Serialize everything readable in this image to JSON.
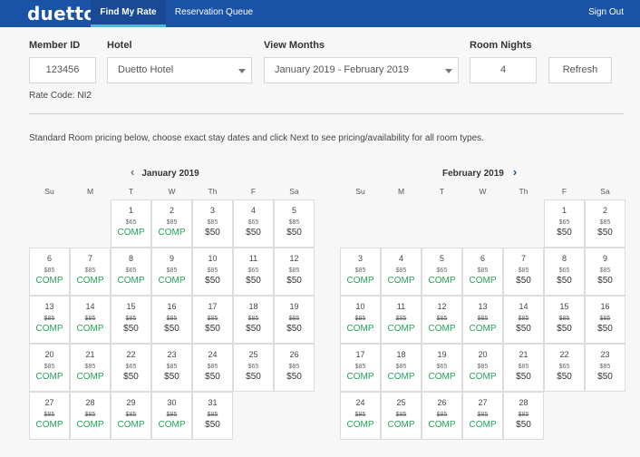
{
  "app": {
    "logo": "duetto",
    "tabs": [
      {
        "label": "Find My Rate",
        "active": true
      },
      {
        "label": "Reservation Queue",
        "active": false
      }
    ],
    "sign_out": "Sign Out"
  },
  "form": {
    "member_id_label": "Member ID",
    "member_id_value": "123456",
    "hotel_label": "Hotel",
    "hotel_value": "Duetto Hotel",
    "view_months_label": "View Months",
    "view_months_value": "January 2019 - February 2019",
    "room_nights_label": "Room Nights",
    "room_nights_value": "4",
    "refresh_label": "Refresh",
    "rate_code": "Rate Code: NI2"
  },
  "instructions": "Standard Room pricing below, choose exact stay dates and click Next to see pricing/availability for all room types.",
  "weekdays": [
    "Su",
    "M",
    "T",
    "W",
    "Th",
    "F",
    "Sa"
  ],
  "calendar": [
    {
      "title": "January 2019",
      "nav": "prev",
      "start_weekday": 2,
      "days": [
        {
          "day": "1",
          "price": "$65",
          "rate": "COMP",
          "strike": false
        },
        {
          "day": "2",
          "price": "$85",
          "rate": "COMP",
          "strike": false
        },
        {
          "day": "3",
          "price": "$85",
          "rate": "$50",
          "strike": false
        },
        {
          "day": "4",
          "price": "$65",
          "rate": "$50",
          "strike": false
        },
        {
          "day": "5",
          "price": "$85",
          "rate": "$50",
          "strike": false
        },
        {
          "day": "6",
          "price": "$85",
          "rate": "COMP",
          "strike": false
        },
        {
          "day": "7",
          "price": "$85",
          "rate": "COMP",
          "strike": false
        },
        {
          "day": "8",
          "price": "$65",
          "rate": "COMP",
          "strike": false
        },
        {
          "day": "9",
          "price": "$85",
          "rate": "COMP",
          "strike": false
        },
        {
          "day": "10",
          "price": "$85",
          "rate": "$50",
          "strike": false
        },
        {
          "day": "11",
          "price": "$65",
          "rate": "$50",
          "strike": false
        },
        {
          "day": "12",
          "price": "$85",
          "rate": "$50",
          "strike": false
        },
        {
          "day": "13",
          "price": "$85",
          "rate": "COMP",
          "strike": true
        },
        {
          "day": "14",
          "price": "$85",
          "rate": "COMP",
          "strike": true
        },
        {
          "day": "15",
          "price": "$85",
          "rate": "$50",
          "strike": true
        },
        {
          "day": "16",
          "price": "$85",
          "rate": "$50",
          "strike": true
        },
        {
          "day": "17",
          "price": "$85",
          "rate": "$50",
          "strike": true
        },
        {
          "day": "18",
          "price": "$85",
          "rate": "$50",
          "strike": true
        },
        {
          "day": "19",
          "price": "$85",
          "rate": "$50",
          "strike": true
        },
        {
          "day": "20",
          "price": "$85",
          "rate": "COMP",
          "strike": false
        },
        {
          "day": "21",
          "price": "$85",
          "rate": "COMP",
          "strike": false
        },
        {
          "day": "22",
          "price": "$65",
          "rate": "$50",
          "strike": false
        },
        {
          "day": "23",
          "price": "$85",
          "rate": "$50",
          "strike": false
        },
        {
          "day": "24",
          "price": "$85",
          "rate": "$50",
          "strike": false
        },
        {
          "day": "25",
          "price": "$65",
          "rate": "$50",
          "strike": false
        },
        {
          "day": "26",
          "price": "$85",
          "rate": "$50",
          "strike": false
        },
        {
          "day": "27",
          "price": "$85",
          "rate": "COMP",
          "strike": true
        },
        {
          "day": "28",
          "price": "$85",
          "rate": "COMP",
          "strike": true
        },
        {
          "day": "29",
          "price": "$85",
          "rate": "COMP",
          "strike": true
        },
        {
          "day": "30",
          "price": "$85",
          "rate": "COMP",
          "strike": true
        },
        {
          "day": "31",
          "price": "$85",
          "rate": "$50",
          "strike": true
        }
      ]
    },
    {
      "title": "February 2019",
      "nav": "next",
      "start_weekday": 5,
      "days": [
        {
          "day": "1",
          "price": "$65",
          "rate": "$50",
          "strike": false
        },
        {
          "day": "2",
          "price": "$85",
          "rate": "$50",
          "strike": false
        },
        {
          "day": "3",
          "price": "$85",
          "rate": "COMP",
          "strike": false
        },
        {
          "day": "4",
          "price": "$85",
          "rate": "COMP",
          "strike": false
        },
        {
          "day": "5",
          "price": "$65",
          "rate": "COMP",
          "strike": false
        },
        {
          "day": "6",
          "price": "$85",
          "rate": "COMP",
          "strike": false
        },
        {
          "day": "7",
          "price": "$85",
          "rate": "$50",
          "strike": false
        },
        {
          "day": "8",
          "price": "$65",
          "rate": "$50",
          "strike": false
        },
        {
          "day": "9",
          "price": "$85",
          "rate": "$50",
          "strike": false
        },
        {
          "day": "10",
          "price": "$85",
          "rate": "COMP",
          "strike": true
        },
        {
          "day": "11",
          "price": "$85",
          "rate": "COMP",
          "strike": true
        },
        {
          "day": "12",
          "price": "$85",
          "rate": "COMP",
          "strike": true
        },
        {
          "day": "13",
          "price": "$85",
          "rate": "COMP",
          "strike": true
        },
        {
          "day": "14",
          "price": "$85",
          "rate": "$50",
          "strike": true
        },
        {
          "day": "15",
          "price": "$85",
          "rate": "$50",
          "strike": true
        },
        {
          "day": "16",
          "price": "$85",
          "rate": "$50",
          "strike": true
        },
        {
          "day": "17",
          "price": "$85",
          "rate": "COMP",
          "strike": false
        },
        {
          "day": "18",
          "price": "$85",
          "rate": "COMP",
          "strike": false
        },
        {
          "day": "19",
          "price": "$65",
          "rate": "COMP",
          "strike": false
        },
        {
          "day": "20",
          "price": "$85",
          "rate": "COMP",
          "strike": false
        },
        {
          "day": "21",
          "price": "$85",
          "rate": "$50",
          "strike": false
        },
        {
          "day": "22",
          "price": "$65",
          "rate": "$50",
          "strike": false
        },
        {
          "day": "23",
          "price": "$85",
          "rate": "$50",
          "strike": false
        },
        {
          "day": "24",
          "price": "$85",
          "rate": "COMP",
          "strike": true
        },
        {
          "day": "25",
          "price": "$85",
          "rate": "COMP",
          "strike": true
        },
        {
          "day": "26",
          "price": "$85",
          "rate": "COMP",
          "strike": true
        },
        {
          "day": "27",
          "price": "$85",
          "rate": "COMP",
          "strike": true
        },
        {
          "day": "28",
          "price": "$85",
          "rate": "$50",
          "strike": true
        }
      ]
    }
  ],
  "colors": {
    "topbar": "#1a52a6",
    "active_tab_underline": "#33c5d6",
    "comp_green": "#26a35a",
    "next_arrow": "#1a52a6"
  },
  "icons": {
    "prev": "chevron-left-icon",
    "next": "chevron-right-icon",
    "dropdown": "caret-down-icon"
  }
}
